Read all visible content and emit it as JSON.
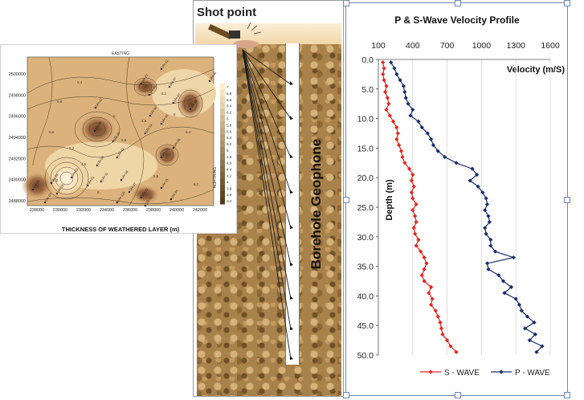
{
  "chart_data": [
    {
      "type": "heatmap",
      "top_label": "EASTING",
      "right_label": "NORTHING",
      "xlabel": "THICKNESS OF WEATHERED LAYER (m)",
      "x_ticks": [
        "228000",
        "230000",
        "232000",
        "234000",
        "236000",
        "238000",
        "240000",
        "242000"
      ],
      "y_ticks": [
        "2500000",
        "2498000",
        "2496000",
        "2494000",
        "2492000",
        "2490000",
        "2488000"
      ],
      "colorbar_ticks": [
        "7",
        "6.8",
        "6.6",
        "6.4",
        "6.2",
        "6",
        "5.8",
        "5.6",
        "5.4",
        "5.2",
        "5",
        "4.8",
        "4.6",
        "4.4",
        "4.2",
        "4",
        "3.8",
        "3.6",
        "3.4"
      ],
      "contour_labels": [
        "5.8",
        "5.4",
        "6.2",
        "5",
        "5.6",
        "6.6",
        "4.6",
        "4.2",
        "6.4",
        "5.8",
        "6",
        "6.2",
        "5.2",
        "4.8",
        "5"
      ],
      "station_labels": [
        "UH-12",
        "UH-40",
        "UH-37",
        "UH-46",
        "UH-23",
        "UH-42",
        "UH-68",
        "UH-47",
        "UH-60",
        "UH-30",
        "UH-59",
        "UH-29",
        "UH-19",
        "UH-06",
        "UH-25",
        "UH-49",
        "UH-08",
        "UH-02",
        "UH-55",
        "UH-75",
        "UH-01",
        "UH-16",
        "UH-11",
        "UH-27",
        "UH-22",
        "UH-15",
        "UH-34",
        "UH-125",
        "UH-72",
        "UH-07",
        "UH-28"
      ]
    },
    {
      "type": "diagram",
      "title": "Shot point",
      "label": "Borehole Geophone"
    },
    {
      "type": "line",
      "title": "P & S-Wave Velocity Profile",
      "x_title": "Velocity (m/S)",
      "ylabel": "Depth (m)",
      "x_ticks": [
        "100",
        "400",
        "700",
        "1000",
        "1300",
        "1600"
      ],
      "y_ticks": [
        "0.0",
        "5.0",
        "10.0",
        "15.0",
        "20.0",
        "25.0",
        "30.0",
        "35.0",
        "40.0",
        "45.0",
        "50.0"
      ],
      "xlim": [
        100,
        1600
      ],
      "ylim": [
        0,
        50
      ],
      "series": [
        {
          "name": "S - WAVE",
          "color": "#e8231e",
          "depth": [
            0.5,
            1.5,
            2.5,
            3.5,
            4.5,
            5.5,
            6.5,
            7.5,
            8.5,
            9.5,
            10.5,
            11.5,
            12.5,
            13.5,
            14.5,
            15.5,
            16.5,
            17.5,
            18.5,
            19.5,
            20.5,
            21.5,
            22.5,
            23.5,
            24.5,
            25.5,
            26.5,
            27.5,
            28.5,
            29.5,
            30.5,
            31.5,
            32.5,
            33.5,
            34.5,
            35.5,
            36.5,
            37.5,
            38.5,
            39.5,
            40.5,
            41.5,
            42.5,
            43.5,
            44.5,
            45.5,
            46.5,
            47.5,
            48.5,
            49.5
          ],
          "velocity": [
            140,
            150,
            140,
            150,
            170,
            160,
            180,
            190,
            170,
            200,
            230,
            260,
            270,
            260,
            280,
            300,
            310,
            330,
            370,
            400,
            390,
            410,
            390,
            400,
            430,
            400,
            420,
            430,
            410,
            420,
            450,
            430,
            470,
            500,
            520,
            500,
            480,
            500,
            560,
            540,
            570,
            560,
            600,
            620,
            640,
            650,
            660,
            700,
            730,
            780
          ]
        },
        {
          "name": "P - WAVE",
          "color": "#1a2f6b",
          "depth": [
            0.5,
            1.5,
            2.5,
            3.5,
            4.5,
            5.5,
            6.5,
            7.5,
            8.5,
            9.5,
            10.5,
            11.5,
            12.5,
            13.5,
            14.5,
            15.5,
            16.5,
            17.5,
            18.5,
            19.5,
            20.5,
            21.5,
            22.5,
            23.5,
            24.5,
            25.5,
            26.5,
            27.5,
            28.5,
            29.5,
            30.5,
            31.5,
            32.5,
            33.5,
            34.5,
            35.5,
            36.5,
            37.5,
            38.5,
            39.5,
            40.5,
            41.5,
            42.5,
            43.5,
            44.5,
            45.5,
            46.5,
            47.5,
            48.5,
            49.5
          ],
          "velocity": [
            210,
            240,
            260,
            290,
            320,
            330,
            340,
            360,
            400,
            380,
            450,
            480,
            530,
            560,
            580,
            620,
            680,
            780,
            920,
            960,
            900,
            970,
            1010,
            1040,
            1050,
            1030,
            1060,
            1070,
            1030,
            1040,
            1080,
            1080,
            1120,
            1280,
            1050,
            1060,
            1150,
            1190,
            1260,
            1200,
            1300,
            1330,
            1350,
            1400,
            1460,
            1380,
            1470,
            1420,
            1530,
            1480
          ]
        }
      ]
    }
  ]
}
